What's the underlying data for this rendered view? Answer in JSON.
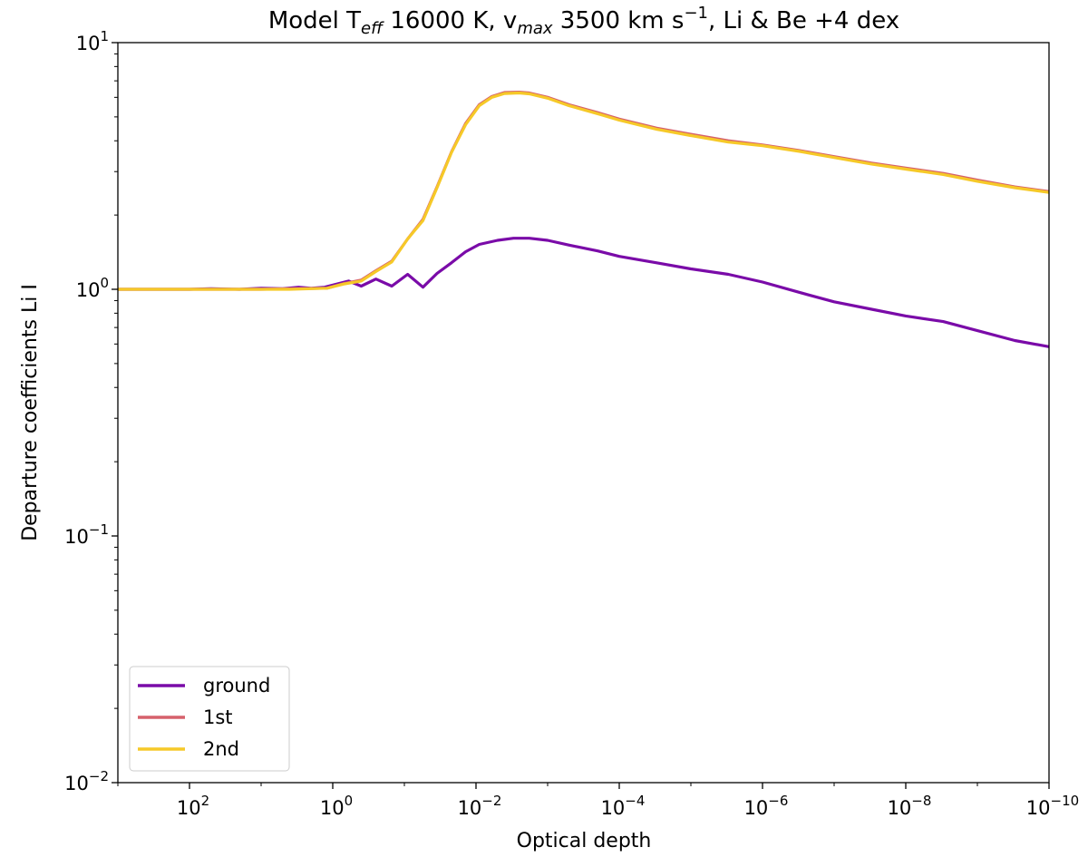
{
  "chart_data": {
    "type": "line",
    "title": {
      "prefix": "Model T",
      "teff_sub": "eff",
      "mid1": " 16000 K, v",
      "vmax_sub": "max",
      "mid2": " 3500 km s",
      "exp": "−1",
      "suffix": ", Li & Be +4 dex"
    },
    "xlabel": "Optical depth",
    "ylabel": "Departure coefficients Li I",
    "x_scale": "log",
    "y_scale": "log",
    "x_reversed": true,
    "xlim": [
      1000,
      1e-10
    ],
    "ylim": [
      0.01,
      10
    ],
    "grid": false,
    "legend_position": "lower-left",
    "x_ticks": [
      {
        "value": 100,
        "base": "10",
        "exp": "2"
      },
      {
        "value": 1,
        "base": "10",
        "exp": "0"
      },
      {
        "value": 0.01,
        "base": "10",
        "exp": "−2"
      },
      {
        "value": 0.0001,
        "base": "10",
        "exp": "−4"
      },
      {
        "value": 1e-06,
        "base": "10",
        "exp": "−6"
      },
      {
        "value": 1e-08,
        "base": "10",
        "exp": "−8"
      },
      {
        "value": 1e-10,
        "base": "10",
        "exp": "−10"
      }
    ],
    "y_ticks": [
      {
        "value": 10,
        "base": "10",
        "exp": "1"
      },
      {
        "value": 1,
        "base": "10",
        "exp": "0"
      },
      {
        "value": 0.1,
        "base": "10",
        "exp": "−1"
      },
      {
        "value": 0.01,
        "base": "10",
        "exp": "−2"
      }
    ],
    "series": [
      {
        "name": "ground",
        "color": "#7a0ba8",
        "points": [
          [
            1000,
            1.0
          ],
          [
            300,
            1.0
          ],
          [
            100,
            1.0
          ],
          [
            50,
            1.005
          ],
          [
            20,
            1.0
          ],
          [
            10,
            1.01
          ],
          [
            5,
            1.005
          ],
          [
            3,
            1.02
          ],
          [
            2,
            1.01
          ],
          [
            1.3,
            1.02
          ],
          [
            0.6,
            1.08
          ],
          [
            0.4,
            1.03
          ],
          [
            0.25,
            1.1
          ],
          [
            0.15,
            1.03
          ],
          [
            0.09,
            1.15
          ],
          [
            0.055,
            1.02
          ],
          [
            0.035,
            1.16
          ],
          [
            0.022,
            1.28
          ],
          [
            0.014,
            1.42
          ],
          [
            0.009,
            1.52
          ],
          [
            0.005,
            1.58
          ],
          [
            0.003,
            1.61
          ],
          [
            0.0018,
            1.61
          ],
          [
            0.001,
            1.58
          ],
          [
            0.0005,
            1.51
          ],
          [
            0.0002,
            1.43
          ],
          [
            0.0001,
            1.36
          ],
          [
            3e-05,
            1.28
          ],
          [
            1e-05,
            1.21
          ],
          [
            3e-06,
            1.15
          ],
          [
            1e-06,
            1.07
          ],
          [
            3e-07,
            0.97
          ],
          [
            1e-07,
            0.89
          ],
          [
            3e-08,
            0.83
          ],
          [
            1e-08,
            0.78
          ],
          [
            3e-09,
            0.74
          ],
          [
            1e-09,
            0.68
          ],
          [
            3e-10,
            0.62
          ],
          [
            1e-10,
            0.585
          ]
        ]
      },
      {
        "name": "1st",
        "color": "#d6616b",
        "points": [
          [
            1000,
            1.0
          ],
          [
            100,
            1.0
          ],
          [
            30,
            1.0
          ],
          [
            10,
            1.0
          ],
          [
            4,
            1.005
          ],
          [
            1.2,
            1.01
          ],
          [
            0.7,
            1.055
          ],
          [
            0.4,
            1.09
          ],
          [
            0.25,
            1.19
          ],
          [
            0.15,
            1.3
          ],
          [
            0.09,
            1.6
          ],
          [
            0.055,
            1.92
          ],
          [
            0.035,
            2.6
          ],
          [
            0.022,
            3.6
          ],
          [
            0.014,
            4.7
          ],
          [
            0.009,
            5.6
          ],
          [
            0.006,
            6.05
          ],
          [
            0.004,
            6.28
          ],
          [
            0.0025,
            6.3
          ],
          [
            0.0018,
            6.25
          ],
          [
            0.001,
            6.0
          ],
          [
            0.0005,
            5.6
          ],
          [
            0.0002,
            5.2
          ],
          [
            0.0001,
            4.9
          ],
          [
            3e-05,
            4.5
          ],
          [
            1e-05,
            4.25
          ],
          [
            3e-06,
            4.0
          ],
          [
            1e-06,
            3.85
          ],
          [
            3e-07,
            3.65
          ],
          [
            1e-07,
            3.45
          ],
          [
            3e-08,
            3.25
          ],
          [
            1e-08,
            3.1
          ],
          [
            3e-09,
            2.95
          ],
          [
            1e-09,
            2.77
          ],
          [
            3e-10,
            2.6
          ],
          [
            1e-10,
            2.49
          ]
        ]
      },
      {
        "name": "2nd",
        "color": "#f6c928",
        "points": [
          [
            1000,
            1.0
          ],
          [
            100,
            1.0
          ],
          [
            30,
            1.0
          ],
          [
            10,
            1.0
          ],
          [
            4,
            1.0
          ],
          [
            1.2,
            1.01
          ],
          [
            0.7,
            1.05
          ],
          [
            0.4,
            1.08
          ],
          [
            0.25,
            1.18
          ],
          [
            0.15,
            1.29
          ],
          [
            0.09,
            1.6
          ],
          [
            0.055,
            1.9
          ],
          [
            0.035,
            2.58
          ],
          [
            0.022,
            3.58
          ],
          [
            0.014,
            4.65
          ],
          [
            0.009,
            5.55
          ],
          [
            0.006,
            6.0
          ],
          [
            0.004,
            6.22
          ],
          [
            0.0025,
            6.25
          ],
          [
            0.0018,
            6.2
          ],
          [
            0.001,
            5.95
          ],
          [
            0.0005,
            5.55
          ],
          [
            0.0002,
            5.15
          ],
          [
            0.0001,
            4.85
          ],
          [
            3e-05,
            4.45
          ],
          [
            1e-05,
            4.2
          ],
          [
            3e-06,
            3.95
          ],
          [
            1e-06,
            3.82
          ],
          [
            3e-07,
            3.62
          ],
          [
            1e-07,
            3.42
          ],
          [
            3e-08,
            3.22
          ],
          [
            1e-08,
            3.07
          ],
          [
            3e-09,
            2.92
          ],
          [
            1e-09,
            2.74
          ],
          [
            3e-10,
            2.58
          ],
          [
            1e-10,
            2.47
          ]
        ]
      }
    ]
  }
}
